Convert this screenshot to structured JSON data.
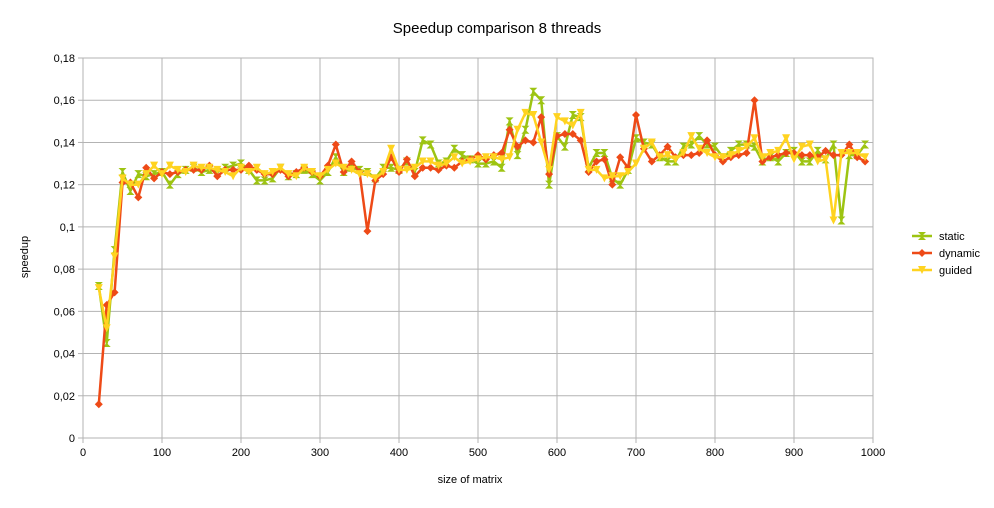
{
  "chart_data": {
    "type": "line",
    "title": "Speedup comparison 8 threads",
    "xlabel": "size of matrix",
    "ylabel": "speedup",
    "xlim": [
      0,
      1000
    ],
    "ylim": [
      0,
      0.18
    ],
    "grid": true,
    "legend_position": "right",
    "x_ticks": [
      0,
      100,
      200,
      300,
      400,
      500,
      600,
      700,
      800,
      900,
      1000
    ],
    "x_tick_labels": [
      "0",
      "100",
      "200",
      "300",
      "400",
      "500",
      "600",
      "700",
      "800",
      "900",
      "1000"
    ],
    "y_ticks": [
      0,
      0.02,
      0.04,
      0.06,
      0.08,
      0.1,
      0.12,
      0.14,
      0.16,
      0.18
    ],
    "y_tick_labels": [
      "0",
      "0,02",
      "0,04",
      "0,06",
      "0,08",
      "0,1",
      "0,12",
      "0,14",
      "0,16",
      "0,18"
    ],
    "x": [
      20,
      30,
      40,
      50,
      60,
      70,
      80,
      90,
      100,
      110,
      120,
      130,
      140,
      150,
      160,
      170,
      180,
      190,
      200,
      210,
      220,
      230,
      240,
      250,
      260,
      270,
      280,
      290,
      300,
      310,
      320,
      330,
      340,
      350,
      360,
      370,
      380,
      390,
      400,
      410,
      420,
      430,
      440,
      450,
      460,
      470,
      480,
      490,
      500,
      510,
      520,
      530,
      540,
      550,
      560,
      570,
      580,
      590,
      600,
      610,
      620,
      630,
      640,
      650,
      660,
      670,
      680,
      690,
      700,
      710,
      720,
      730,
      740,
      750,
      760,
      770,
      780,
      790,
      800,
      810,
      820,
      830,
      840,
      850,
      860,
      870,
      880,
      890,
      900,
      910,
      920,
      930,
      940,
      950,
      960,
      970,
      980,
      990
    ],
    "series": [
      {
        "name": "static",
        "color": "#9dc412",
        "marker": "hourglass",
        "values": [
          0.072,
          0.045,
          0.089,
          0.126,
          0.117,
          0.125,
          0.124,
          0.125,
          0.126,
          0.12,
          0.125,
          0.127,
          0.128,
          0.126,
          0.127,
          0.126,
          0.128,
          0.129,
          0.13,
          0.127,
          0.122,
          0.122,
          0.123,
          0.128,
          0.124,
          0.125,
          0.127,
          0.125,
          0.122,
          0.126,
          0.133,
          0.126,
          0.128,
          0.127,
          0.126,
          0.123,
          0.128,
          0.128,
          0.127,
          0.131,
          0.126,
          0.141,
          0.139,
          0.13,
          0.131,
          0.137,
          0.134,
          0.132,
          0.13,
          0.13,
          0.131,
          0.128,
          0.15,
          0.134,
          0.146,
          0.164,
          0.16,
          0.12,
          0.143,
          0.138,
          0.153,
          0.152,
          0.128,
          0.135,
          0.135,
          0.123,
          0.12,
          0.127,
          0.142,
          0.14,
          0.139,
          0.133,
          0.131,
          0.131,
          0.138,
          0.139,
          0.143,
          0.139,
          0.138,
          0.133,
          0.136,
          0.139,
          0.139,
          0.138,
          0.131,
          0.133,
          0.131,
          0.135,
          0.136,
          0.131,
          0.131,
          0.136,
          0.132,
          0.139,
          0.103,
          0.134,
          0.134,
          0.139
        ]
      },
      {
        "name": "dynamic",
        "color": "#ee4a17",
        "marker": "diamond",
        "values": [
          0.016,
          0.063,
          0.069,
          0.121,
          0.121,
          0.114,
          0.128,
          0.123,
          0.126,
          0.125,
          0.126,
          0.127,
          0.127,
          0.127,
          0.129,
          0.124,
          0.127,
          0.127,
          0.127,
          0.129,
          0.127,
          0.125,
          0.125,
          0.127,
          0.124,
          0.126,
          0.128,
          0.126,
          0.124,
          0.129,
          0.139,
          0.126,
          0.131,
          0.126,
          0.098,
          0.122,
          0.125,
          0.133,
          0.126,
          0.132,
          0.124,
          0.128,
          0.128,
          0.127,
          0.129,
          0.128,
          0.131,
          0.132,
          0.134,
          0.132,
          0.134,
          0.135,
          0.146,
          0.138,
          0.141,
          0.14,
          0.152,
          0.125,
          0.143,
          0.144,
          0.144,
          0.141,
          0.126,
          0.131,
          0.132,
          0.12,
          0.133,
          0.128,
          0.153,
          0.137,
          0.131,
          0.134,
          0.138,
          0.133,
          0.134,
          0.134,
          0.135,
          0.141,
          0.134,
          0.131,
          0.133,
          0.134,
          0.135,
          0.16,
          0.131,
          0.133,
          0.134,
          0.135,
          0.135,
          0.134,
          0.134,
          0.133,
          0.136,
          0.134,
          0.134,
          0.139,
          0.133,
          0.131
        ]
      },
      {
        "name": "guided",
        "color": "#ffd320",
        "marker": "triangle-down",
        "values": [
          0.071,
          0.052,
          0.086,
          0.123,
          0.12,
          0.12,
          0.125,
          0.129,
          0.125,
          0.129,
          0.127,
          0.126,
          0.129,
          0.128,
          0.128,
          0.127,
          0.126,
          0.124,
          0.128,
          0.126,
          0.128,
          0.125,
          0.126,
          0.128,
          0.125,
          0.124,
          0.128,
          0.126,
          0.124,
          0.127,
          0.13,
          0.128,
          0.127,
          0.125,
          0.125,
          0.123,
          0.126,
          0.137,
          0.127,
          0.127,
          0.128,
          0.131,
          0.131,
          0.129,
          0.13,
          0.133,
          0.13,
          0.131,
          0.132,
          0.133,
          0.133,
          0.132,
          0.133,
          0.146,
          0.154,
          0.153,
          0.14,
          0.127,
          0.152,
          0.15,
          0.148,
          0.154,
          0.127,
          0.127,
          0.123,
          0.124,
          0.124,
          0.126,
          0.13,
          0.137,
          0.14,
          0.133,
          0.134,
          0.132,
          0.135,
          0.143,
          0.137,
          0.135,
          0.133,
          0.133,
          0.134,
          0.136,
          0.138,
          0.142,
          0.133,
          0.135,
          0.136,
          0.142,
          0.132,
          0.138,
          0.139,
          0.131,
          0.132,
          0.103,
          0.135,
          0.135,
          0.135,
          0.133
        ]
      }
    ]
  }
}
